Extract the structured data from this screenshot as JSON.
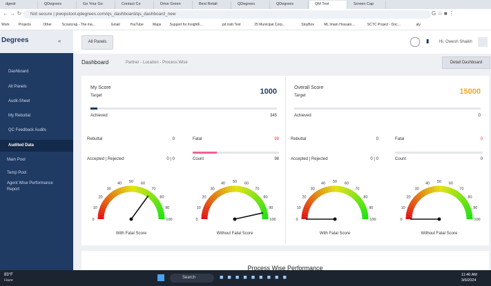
{
  "browser": {
    "tabs": [
      "dgeslr",
      "QDegrees",
      "Go Your Go",
      "Contact Co",
      "Drive Green",
      "Best Retail",
      "QDegrees",
      "QDegrees",
      "QM Tool",
      "Screen Cap"
    ],
    "active_tab": 8,
    "address": "Not secure | pwopstool.qdegrees.com/qs_dashboard/qs_dashboard_new",
    "bookmarks": [
      "Work",
      "Projects",
      "Other",
      "Scoutcrap - The ma...",
      "Gmail",
      "YouTube",
      "Maps",
      "Support for InsightF...",
      "pd insb Test",
      "25 Municipal Corp...",
      "StoyBox",
      "ML Imam Hossain...",
      "SCTC Project - Doc...",
      "aly"
    ]
  },
  "sidebar": {
    "logo": "Degrees",
    "items": [
      "Dashboard",
      "All Panels",
      "Audit-Sheet",
      "My Rebuttal",
      "QC Feedback Audits",
      "Audited Data",
      "Main Pool",
      "Temp Pool",
      "Agent Wise Performance Report"
    ],
    "active": 5
  },
  "topbar": {
    "button": "All Panels",
    "user": "Hi, Owesh Shaikh"
  },
  "breadcrumb": {
    "title": "Dashboard",
    "path": "Partner - Location - Process Wise",
    "button": "Detail Dashboard"
  },
  "cards": [
    {
      "title": "My Score",
      "score": "1000",
      "target_label": "Target",
      "achieved_label": "Achieved",
      "achieved": "345",
      "rebuttal_label": "Rebuttal",
      "rebuttal": "0",
      "fatal_label": "Fatal",
      "fatal": "98",
      "accepted_label": "Accepted | Rejected",
      "accepted": "0 | 0",
      "count_label": "Count",
      "count": "98"
    },
    {
      "title": "Overall Score",
      "score": "15000",
      "target_label": "Target",
      "achieved_label": "Achieved",
      "achieved": "0",
      "rebuttal_label": "Rebuttal",
      "rebuttal": "0",
      "fatal_label": "Fatal",
      "fatal": "0",
      "accepted_label": "Accepted | Rejected",
      "accepted": "0 | 0",
      "count_label": "Count",
      "count": "0"
    }
  ],
  "gauge_scale": {
    "min": 0,
    "max": 100,
    "ticks": [
      0,
      10,
      20,
      30,
      40,
      50,
      60,
      70,
      80,
      90,
      100
    ]
  },
  "gauges": [
    {
      "label": "With Fatal Score",
      "value": 70
    },
    {
      "label": "Without Fatal Score",
      "value": 93
    },
    {
      "label": "With Fatal Score",
      "value": 0
    },
    {
      "label": "Without Fatal Score",
      "value": 0
    }
  ],
  "section_title": "Process Wise Performance",
  "taskbar": {
    "weather": "83°F",
    "weather_desc": "Haze",
    "search": "Search",
    "time": "11:40 AM",
    "date": "3/6/2024"
  }
}
